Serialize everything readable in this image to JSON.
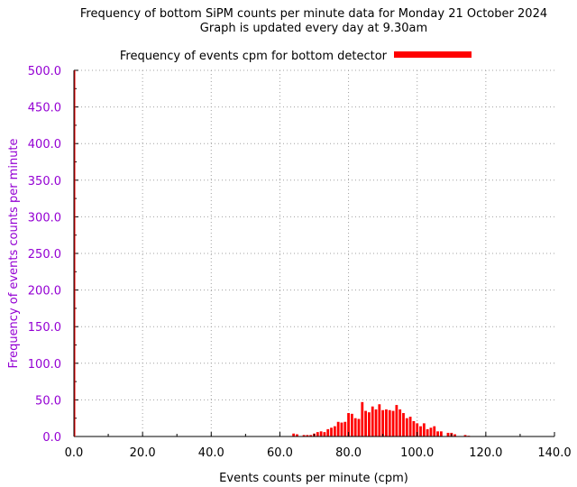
{
  "chart_data": {
    "type": "bar",
    "title": "Frequency of bottom SiPM counts per minute data for Monday 21 October 2024",
    "subtitle": "Graph is updated every day at 9.30am",
    "xlabel": "Events counts per minute (cpm)",
    "ylabel": "Frequency of events counts per minute",
    "xlim": [
      0,
      140
    ],
    "ylim": [
      0,
      500
    ],
    "x_ticks": [
      "0.0",
      "20.0",
      "40.0",
      "60.0",
      "80.0",
      "100.0",
      "120.0",
      "140.0"
    ],
    "y_ticks": [
      "0.0",
      "50.0",
      "100.0",
      "150.0",
      "200.0",
      "250.0",
      "300.0",
      "350.0",
      "400.0",
      "450.0",
      "500.0"
    ],
    "grid": true,
    "legend_position": "top-center",
    "series": [
      {
        "name": "Frequency of events cpm for bottom detector",
        "color": "#ff0000",
        "x": [
          64,
          65,
          67,
          68,
          69,
          70,
          71,
          72,
          73,
          74,
          75,
          76,
          77,
          78,
          79,
          80,
          81,
          82,
          83,
          84,
          85,
          86,
          87,
          88,
          89,
          90,
          91,
          92,
          93,
          94,
          95,
          96,
          97,
          98,
          99,
          100,
          101,
          102,
          103,
          104,
          105,
          106,
          107,
          109,
          110,
          111,
          114,
          115
        ],
        "y": [
          4,
          3,
          2,
          2,
          2,
          4,
          6,
          7,
          6,
          10,
          12,
          14,
          20,
          19,
          20,
          32,
          31,
          25,
          24,
          47,
          35,
          33,
          41,
          37,
          44,
          36,
          37,
          36,
          35,
          43,
          37,
          32,
          25,
          27,
          21,
          18,
          14,
          18,
          10,
          12,
          14,
          7,
          7,
          5,
          5,
          3,
          2,
          1
        ]
      }
    ]
  }
}
